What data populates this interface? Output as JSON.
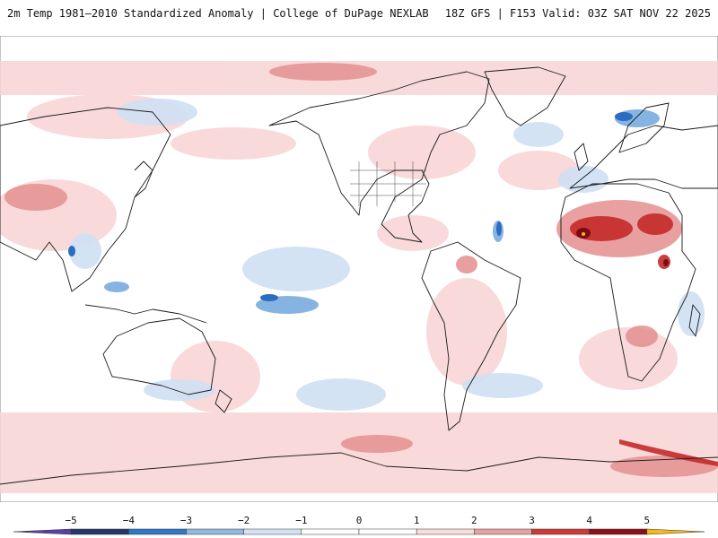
{
  "header": {
    "left_title": "2m Temp 1981–2010 Standardized Anomaly | College of DuPage NEXLAB",
    "right_title": "18Z GFS | F153 Valid: 03Z SAT NOV 22 2025"
  },
  "colorbar": {
    "tick_labels": [
      "−5",
      "−4",
      "−3",
      "−2",
      "−1",
      "0",
      "1",
      "2",
      "3",
      "4",
      "5"
    ],
    "colors": [
      "#5b3fa6",
      "#22386b",
      "#2f78c4",
      "#8fb9e0",
      "#d4e3f3",
      "#ffffff",
      "#f9dcdc",
      "#e9a2a2",
      "#cc3a3a",
      "#8c0f1a",
      "#f7b818"
    ]
  },
  "colors": {
    "warm_light": "#f8d3d3",
    "warm_mid": "#e58f8f",
    "warm_strong": "#c42a2a",
    "warm_extreme": "#7e0b14",
    "cool_light": "#cfe0f3",
    "cool_mid": "#7fb0e0",
    "cool_strong": "#2b6cc0",
    "coast": "#1a1a1a"
  }
}
